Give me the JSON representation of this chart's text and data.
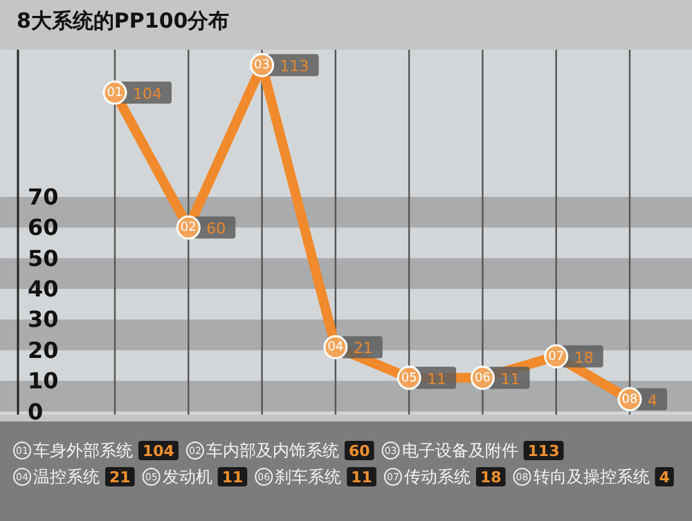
{
  "chart_data": {
    "type": "line",
    "title": "8大系统的PP100分布",
    "categories": [
      null,
      null,
      null,
      null,
      null,
      null,
      null,
      null
    ],
    "series": [
      {
        "color": "#f08a2c",
        "values": [
          104,
          60,
          113,
          21,
          11,
          11,
          18,
          4
        ]
      }
    ],
    "data_labels": true,
    "annotations": [
      "01",
      "02",
      "03",
      "04",
      "05",
      "06",
      "07",
      "08",
      "车身外部系统",
      "车内部及内饰系统",
      "电子设备及附件",
      "温控系统",
      "发动机",
      "刹车系统",
      "传动系统",
      "转向及操控系统",
      "104",
      "60",
      "113",
      "21",
      "11",
      "11",
      "18",
      "4"
    ],
    "ylim": [
      -1,
      118
    ],
    "yticks": [
      0,
      10,
      20,
      30,
      40,
      50,
      60,
      70
    ],
    "grid": "x",
    "marker": "circle",
    "line_style": "solid",
    "bands": [
      {
        "axis": "y",
        "from": 0,
        "to": 10,
        "color": "#a9abad"
      },
      {
        "axis": "y",
        "from": 20,
        "to": 30,
        "color": "#a9abad"
      },
      {
        "axis": "y",
        "from": 40,
        "to": 50,
        "color": "#a9abad"
      },
      {
        "axis": "y",
        "from": 60,
        "to": 70,
        "color": "#a9abad"
      }
    ]
  }
}
